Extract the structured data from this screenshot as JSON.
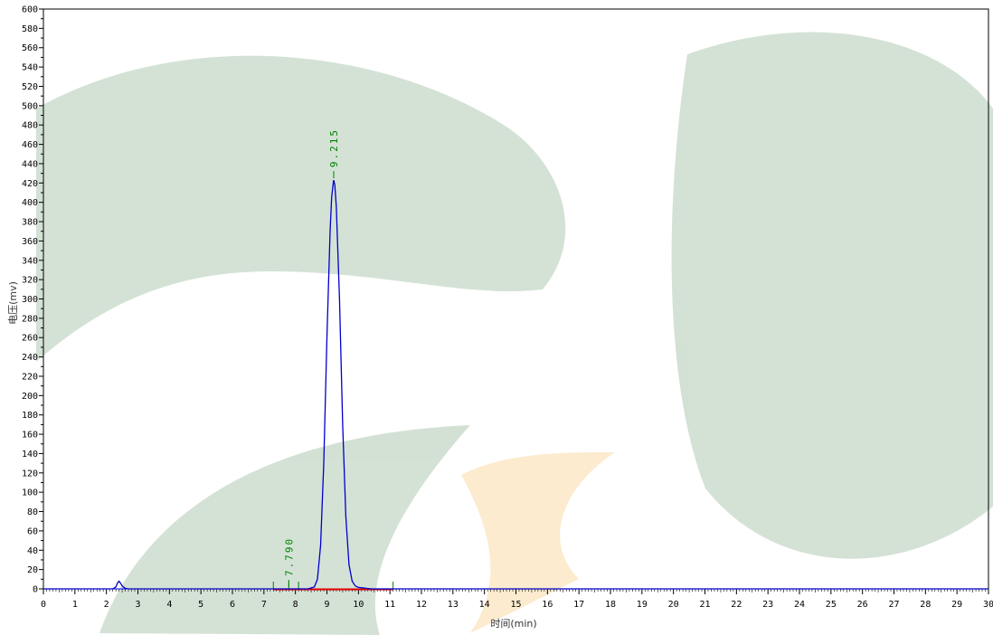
{
  "chart_data": {
    "type": "line",
    "xlabel": "时间(min)",
    "ylabel": "电压(mv)",
    "xlim": [
      0,
      30
    ],
    "ylim": [
      0,
      600
    ],
    "x_ticks": [
      0,
      1,
      2,
      3,
      4,
      5,
      6,
      7,
      8,
      9,
      10,
      11,
      12,
      13,
      14,
      15,
      16,
      17,
      18,
      19,
      20,
      21,
      22,
      23,
      24,
      25,
      26,
      27,
      28,
      29,
      30
    ],
    "y_ticks": [
      0,
      20,
      40,
      60,
      80,
      100,
      120,
      140,
      160,
      180,
      200,
      220,
      240,
      260,
      280,
      300,
      320,
      340,
      360,
      380,
      400,
      420,
      440,
      460,
      480,
      500,
      520,
      540,
      560,
      580,
      600
    ],
    "grid": false,
    "series": [
      {
        "values_x": [
          0,
          2.2,
          2.3,
          2.35,
          2.4,
          2.45,
          2.5,
          2.6,
          2.7,
          8.4,
          8.6,
          8.7,
          8.8,
          8.9,
          9.0,
          9.1,
          9.15,
          9.2,
          9.215,
          9.25,
          9.3,
          9.4,
          9.5,
          9.6,
          9.7,
          9.8,
          9.9,
          10.0,
          10.2,
          10.4,
          30
        ],
        "values_y": [
          0,
          0,
          2,
          6,
          8,
          6,
          3,
          0.5,
          0,
          0,
          2,
          10,
          45,
          130,
          260,
          370,
          405,
          420,
          423,
          418,
          395,
          300,
          170,
          75,
          25,
          8,
          3,
          1.5,
          0.8,
          0,
          0
        ]
      }
    ],
    "baseline": {
      "color": "#0000ff",
      "y": 0
    },
    "integration_segment": {
      "x": [
        7.3,
        11.1
      ],
      "color": "#e00000"
    },
    "peaks": [
      {
        "label": "7.790",
        "x": 7.79,
        "y": 0
      },
      {
        "label": "9.215",
        "x": 9.215,
        "y": 423
      }
    ],
    "peak_markers_x": [
      7.3,
      7.79,
      8.1,
      11.1
    ],
    "colors": {
      "trace": "#0000cc",
      "peak_label": "#008000",
      "baseline": "#0000ff",
      "integration": "#e00000"
    },
    "watermark": "green leaf / orange logo (decorative)"
  }
}
